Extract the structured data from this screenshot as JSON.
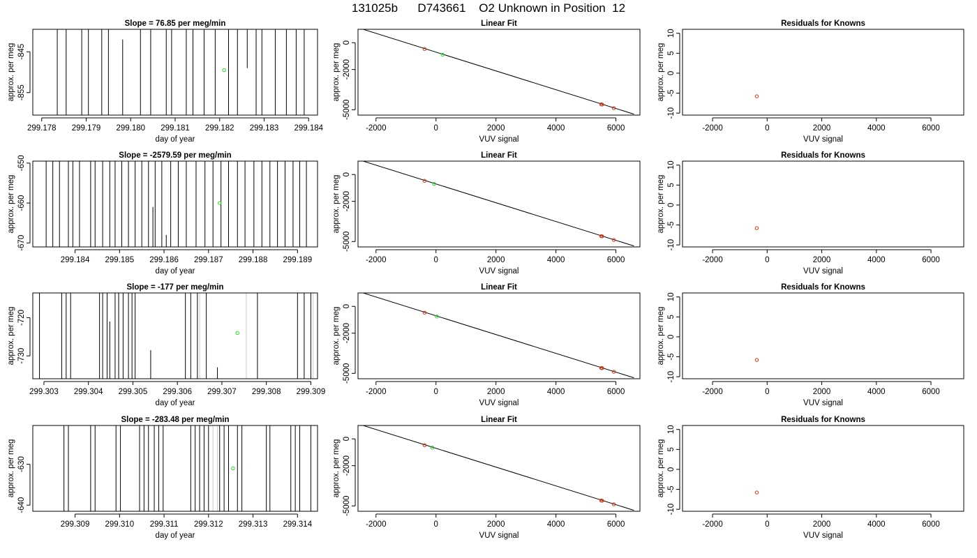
{
  "main_title": "131025b      D743661    O2 Unknown in Position  12",
  "colors": {
    "axis": "#000000",
    "trace": "#000000",
    "trace_faint": "#c8c8c8",
    "known": "#cc3311",
    "unknown": "#22dd22"
  },
  "chart_data": [
    {
      "type": "line",
      "panel": "time-series-1",
      "title": "Slope =  76.85  per meg/min",
      "xlabel": "day of year",
      "ylabel": "approx. per meg",
      "xlim": [
        299.1778,
        299.1842
      ],
      "ylim": [
        -860.5,
        -839.5
      ],
      "x_ticks": [
        299.178,
        299.179,
        299.18,
        299.181,
        299.182,
        299.183,
        299.184
      ],
      "x_tick_labels": [
        "299.178",
        "299.179",
        "299.180",
        "299.181",
        "299.182",
        "299.183",
        "299.184"
      ],
      "y_ticks": [
        -845,
        -855
      ],
      "y_tick_labels": [
        "-845",
        "-855"
      ],
      "spikes": [
        [
          299.17835,
          -860.5,
          -839.5
        ],
        [
          299.17855,
          -860.5,
          -839.5
        ],
        [
          299.1789,
          -860.5,
          -839.5
        ],
        [
          299.17905,
          -860.5,
          -839.5
        ],
        [
          299.17935,
          -860.5,
          -839.5
        ],
        [
          299.1795,
          -860.5,
          -839.5
        ],
        [
          299.17982,
          -860.5,
          -842
        ],
        [
          299.18022,
          -860.5,
          -839.5
        ],
        [
          299.18045,
          -860.5,
          -839.5
        ],
        [
          299.1808,
          -860.5,
          -839.5
        ],
        [
          299.18092,
          -860.5,
          -839.5
        ],
        [
          299.18125,
          -860.5,
          -839.5
        ],
        [
          299.1814,
          -860.5,
          -839.5
        ],
        [
          299.18165,
          -860.5,
          -839.5
        ],
        [
          299.1819,
          -860.5,
          -839.5
        ],
        [
          299.1822,
          -860.5,
          -839.5
        ],
        [
          299.1824,
          -860.5,
          -839.5
        ],
        [
          299.18262,
          -849,
          -839.5
        ],
        [
          299.18282,
          -860.5,
          -839.5
        ],
        [
          299.18295,
          -860.5,
          -839.5
        ],
        [
          299.18325,
          -860.5,
          -839.5
        ],
        [
          299.1835,
          -860.5,
          -839.5
        ],
        [
          299.18372,
          -860.5,
          -839.5
        ],
        [
          299.1839,
          -860.5,
          -839.5
        ]
      ],
      "marker": {
        "x": 299.1821,
        "y": -849.5
      }
    },
    {
      "type": "line",
      "panel": "time-series-2",
      "title": "Slope =  -2579.59  per meg/min",
      "xlabel": "day of year",
      "ylabel": "approx. per meg",
      "xlim": [
        299.18305,
        299.18945
      ],
      "ylim": [
        -671,
        -649.5
      ],
      "x_ticks": [
        299.184,
        299.185,
        299.186,
        299.187,
        299.188,
        299.189
      ],
      "x_tick_labels": [
        "299.184",
        "299.185",
        "299.186",
        "299.187",
        "299.188",
        "299.189"
      ],
      "y_ticks": [
        -650,
        -660,
        -670
      ],
      "y_tick_labels": [
        "-650",
        "-660",
        "-670"
      ],
      "spikes": [
        [
          299.18335,
          -671,
          -649.5
        ],
        [
          299.1835,
          -671,
          -649.5
        ],
        [
          299.18365,
          -671,
          -649.5
        ],
        [
          299.18385,
          -671,
          -649.5
        ],
        [
          299.18395,
          -671,
          -649.5
        ],
        [
          299.1841,
          -671,
          -649.5
        ],
        [
          299.18435,
          -671,
          -649.5
        ],
        [
          299.18445,
          -671,
          -649.5
        ],
        [
          299.18462,
          -671,
          -649.5
        ],
        [
          299.18478,
          -671,
          -649.5
        ],
        [
          299.1849,
          -671,
          -649.5
        ],
        [
          299.18505,
          -671,
          -649.5
        ],
        [
          299.1852,
          -671,
          -649.5
        ],
        [
          299.18535,
          -671,
          -649.5
        ],
        [
          299.1855,
          -671,
          -649.5
        ],
        [
          299.18565,
          -671,
          -649.5
        ],
        [
          299.1858,
          -671,
          -649.5
        ],
        [
          299.18595,
          -671,
          -649.5
        ],
        [
          299.18615,
          -671,
          -649.5
        ],
        [
          299.18632,
          -671,
          -649.5
        ],
        [
          299.1865,
          -671,
          -649.5
        ],
        [
          299.18672,
          -671,
          -649.5
        ],
        [
          299.18692,
          -671,
          -649.5
        ],
        [
          299.1871,
          -671,
          -649.5
        ],
        [
          299.18728,
          -671,
          -649.5
        ],
        [
          299.18745,
          -671,
          -649.5
        ],
        [
          299.18765,
          -671,
          -649.5
        ],
        [
          299.18782,
          -671,
          -649.5
        ],
        [
          299.18802,
          -671,
          -649.5
        ],
        [
          299.1882,
          -671,
          -649.5
        ],
        [
          299.18838,
          -671,
          -649.5
        ],
        [
          299.18855,
          -671,
          -649.5
        ],
        [
          299.18872,
          -671,
          -649.5
        ],
        [
          299.1889,
          -671,
          -649.5
        ],
        [
          299.18905,
          -671,
          -649.5
        ],
        [
          299.1892,
          -671,
          -649.5
        ],
        [
          299.18575,
          -671,
          -661
        ],
        [
          299.18605,
          -671,
          -668
        ]
      ],
      "marker": {
        "x": 299.18725,
        "y": -660
      }
    },
    {
      "type": "line",
      "panel": "time-series-3",
      "title": "Slope =  -177  per meg/min",
      "xlabel": "day of year",
      "ylabel": "approx. per meg",
      "xlim": [
        299.30275,
        299.30915
      ],
      "ylim": [
        -736,
        -713.5
      ],
      "x_ticks": [
        299.303,
        299.304,
        299.305,
        299.306,
        299.307,
        299.308,
        299.309
      ],
      "x_tick_labels": [
        "299.303",
        "299.304",
        "299.305",
        "299.306",
        "299.307",
        "299.308",
        "299.309"
      ],
      "y_ticks": [
        -720,
        -730
      ],
      "y_tick_labels": [
        "-720",
        "-730"
      ],
      "spikes": [
        [
          299.3029,
          -736,
          -713.5
        ],
        [
          299.3034,
          -736,
          -713.5
        ],
        [
          299.3035,
          -736,
          -713.5
        ],
        [
          299.3036,
          -736,
          -713.5
        ],
        [
          299.30425,
          -736,
          -713.5
        ],
        [
          299.30432,
          -736,
          -713.5
        ],
        [
          299.30442,
          -736,
          -713.5
        ],
        [
          299.30448,
          -736,
          -721
        ],
        [
          299.3046,
          -736,
          -713.5
        ],
        [
          299.30468,
          -736,
          -713.5
        ],
        [
          299.30478,
          -736,
          -713.5
        ],
        [
          299.3049,
          -736,
          -713.5
        ],
        [
          299.30498,
          -736,
          -713.5
        ],
        [
          299.30505,
          -736,
          -713.5
        ],
        [
          299.30618,
          -736,
          -713.5
        ],
        [
          299.3063,
          -736,
          -713.5
        ],
        [
          299.30645,
          -736,
          -713.5
        ],
        [
          299.30665,
          -736,
          -713.5
        ],
        [
          299.3078,
          -736,
          -713.5
        ],
        [
          299.3087,
          -736,
          -713.5
        ],
        [
          299.30885,
          -736,
          -713.5
        ],
        [
          299.309,
          -736,
          -713.5
        ],
        [
          299.3054,
          -736,
          -728.5
        ],
        [
          299.3069,
          -736,
          -733
        ]
      ],
      "faint_spikes": [
        [
          299.3065,
          -736,
          -713.5
        ],
        [
          299.30755,
          -736,
          -713.5
        ],
        [
          299.30905,
          -736,
          -713.5
        ]
      ],
      "marker": {
        "x": 299.30735,
        "y": -724
      }
    },
    {
      "type": "line",
      "panel": "time-series-4",
      "title": "Slope =  -283.48  per meg/min",
      "xlabel": "day of year",
      "ylabel": "approx. per meg",
      "xlim": [
        299.30805,
        299.31445
      ],
      "ylim": [
        -641.5,
        -620.5
      ],
      "x_ticks": [
        299.309,
        299.31,
        299.311,
        299.312,
        299.313,
        299.314
      ],
      "x_tick_labels": [
        "299.309",
        "299.310",
        "299.311",
        "299.312",
        "299.313",
        "299.314"
      ],
      "y_ticks": [
        -630,
        -640
      ],
      "y_tick_labels": [
        "-630",
        "-640"
      ],
      "spikes": [
        [
          299.30875,
          -641.5,
          -620.5
        ],
        [
          299.30885,
          -641.5,
          -620.5
        ],
        [
          299.30935,
          -641.5,
          -620.5
        ],
        [
          299.30945,
          -641.5,
          -620.5
        ],
        [
          299.30992,
          -641.5,
          -620.5
        ],
        [
          299.31002,
          -641.5,
          -620.5
        ],
        [
          299.31045,
          -641.5,
          -620.5
        ],
        [
          299.31055,
          -641.5,
          -620.5
        ],
        [
          299.31065,
          -641.5,
          -620.5
        ],
        [
          299.31078,
          -641.5,
          -620.5
        ],
        [
          299.31088,
          -641.5,
          -620.5
        ],
        [
          299.31098,
          -641.5,
          -620.5
        ],
        [
          299.3116,
          -641.5,
          -620.5
        ],
        [
          299.3117,
          -641.5,
          -620.5
        ],
        [
          299.3118,
          -641.5,
          -620.5
        ],
        [
          299.3119,
          -641.5,
          -620.5
        ],
        [
          299.312,
          -641.5,
          -620.5
        ],
        [
          299.31225,
          -641.5,
          -620.5
        ],
        [
          299.31235,
          -641.5,
          -620.5
        ],
        [
          299.31245,
          -641.5,
          -620.5
        ],
        [
          299.31265,
          -641.5,
          -620.5
        ],
        [
          299.31275,
          -641.5,
          -620.5
        ],
        [
          299.3133,
          -641.5,
          -620.5
        ],
        [
          299.31338,
          -641.5,
          -620.5
        ],
        [
          299.31385,
          -641.5,
          -620.5
        ],
        [
          299.31395,
          -641.5,
          -620.5
        ],
        [
          299.31405,
          -641.5,
          -620.5
        ],
        [
          299.3143,
          -641.5,
          -620.5
        ]
      ],
      "faint_spikes": [
        [
          299.3121,
          -641.5,
          -620.5
        ],
        [
          299.3122,
          -641.5,
          -620.5
        ]
      ],
      "marker": {
        "x": 299.31255,
        "y": -631
      }
    },
    {
      "type": "scatter",
      "panel": "linear-fit-1",
      "title": "Linear Fit",
      "xlabel": "VUV signal",
      "ylabel": "approx. per meg",
      "xlim": [
        -2600,
        6800
      ],
      "ylim": [
        -5400,
        1000
      ],
      "x_ticks": [
        -2000,
        0,
        2000,
        4000,
        6000
      ],
      "x_tick_labels": [
        "-2000",
        "0",
        "2000",
        "4000",
        "6000"
      ],
      "y_ticks": [
        0,
        -2000,
        -5000
      ],
      "y_tick_labels": [
        "0",
        "-2000",
        "-5000"
      ],
      "fit_line": [
        [
          -2500,
          1050
        ],
        [
          6600,
          -5330
        ]
      ],
      "knowns": [
        [
          -380,
          -470
        ],
        [
          5510,
          -4600
        ],
        [
          5540,
          -4610
        ],
        [
          5930,
          -4880
        ]
      ],
      "unknown": [
        [
          220,
          -890
        ]
      ]
    },
    {
      "type": "scatter",
      "panel": "linear-fit-2",
      "title": "Linear Fit",
      "xlabel": "VUV signal",
      "ylabel": "approx. per meg",
      "xlim": [
        -2600,
        6800
      ],
      "ylim": [
        -5400,
        1000
      ],
      "x_ticks": [
        -2000,
        0,
        2000,
        4000,
        6000
      ],
      "x_tick_labels": [
        "-2000",
        "0",
        "2000",
        "4000",
        "6000"
      ],
      "y_ticks": [
        0,
        -2000,
        -5000
      ],
      "y_tick_labels": [
        "0",
        "-2000",
        "-5000"
      ],
      "fit_line": [
        [
          -2500,
          1050
        ],
        [
          6600,
          -5330
        ]
      ],
      "knowns": [
        [
          -380,
          -470
        ],
        [
          5510,
          -4600
        ],
        [
          5540,
          -4610
        ],
        [
          5930,
          -4880
        ]
      ],
      "unknown": [
        [
          -60,
          -700
        ]
      ]
    },
    {
      "type": "scatter",
      "panel": "linear-fit-3",
      "title": "Linear Fit",
      "xlabel": "VUV signal",
      "ylabel": "approx. per meg",
      "xlim": [
        -2600,
        6800
      ],
      "ylim": [
        -5400,
        1000
      ],
      "x_ticks": [
        -2000,
        0,
        2000,
        4000,
        6000
      ],
      "x_tick_labels": [
        "-2000",
        "0",
        "2000",
        "4000",
        "6000"
      ],
      "y_ticks": [
        0,
        -2000,
        -5000
      ],
      "y_tick_labels": [
        "0",
        "-2000",
        "-5000"
      ],
      "fit_line": [
        [
          -2500,
          1050
        ],
        [
          6600,
          -5330
        ]
      ],
      "knowns": [
        [
          -380,
          -470
        ],
        [
          5510,
          -4600
        ],
        [
          5540,
          -4610
        ],
        [
          5930,
          -4880
        ]
      ],
      "unknown": [
        [
          30,
          -760
        ]
      ]
    },
    {
      "type": "scatter",
      "panel": "linear-fit-4",
      "title": "Linear Fit",
      "xlabel": "VUV signal",
      "ylabel": "approx. per meg",
      "xlim": [
        -2600,
        6800
      ],
      "ylim": [
        -5400,
        1000
      ],
      "x_ticks": [
        -2000,
        0,
        2000,
        4000,
        6000
      ],
      "x_tick_labels": [
        "-2000",
        "0",
        "2000",
        "4000",
        "6000"
      ],
      "y_ticks": [
        0,
        -2000,
        -5000
      ],
      "y_tick_labels": [
        "0",
        "-2000",
        "-5000"
      ],
      "fit_line": [
        [
          -2500,
          1050
        ],
        [
          6600,
          -5330
        ]
      ],
      "knowns": [
        [
          -380,
          -470
        ],
        [
          5510,
          -4600
        ],
        [
          5540,
          -4610
        ],
        [
          5930,
          -4880
        ]
      ],
      "unknown": [
        [
          -120,
          -650
        ]
      ]
    },
    {
      "type": "scatter",
      "panel": "residuals-1",
      "title": "Residuals for Knowns",
      "xlabel": "VUV signal",
      "ylabel": "approx. per meg",
      "xlim": [
        -3100,
        7200
      ],
      "ylim": [
        -10.5,
        11
      ],
      "x_ticks": [
        -2000,
        0,
        2000,
        4000,
        6000
      ],
      "x_tick_labels": [
        "-2000",
        "0",
        "2000",
        "4000",
        "6000"
      ],
      "y_ticks": [
        10,
        5,
        0,
        -5,
        -10
      ],
      "y_tick_labels": [
        "10",
        "5",
        "0",
        "-5",
        "-10"
      ],
      "knowns": [
        [
          -380,
          -5.8
        ]
      ]
    },
    {
      "type": "scatter",
      "panel": "residuals-2",
      "title": "Residuals for Knowns",
      "xlabel": "VUV signal",
      "ylabel": "approx. per meg",
      "xlim": [
        -3100,
        7200
      ],
      "ylim": [
        -10.5,
        11
      ],
      "x_ticks": [
        -2000,
        0,
        2000,
        4000,
        6000
      ],
      "x_tick_labels": [
        "-2000",
        "0",
        "2000",
        "4000",
        "6000"
      ],
      "y_ticks": [
        10,
        5,
        0,
        -5,
        -10
      ],
      "y_tick_labels": [
        "10",
        "5",
        "0",
        "-5",
        "-10"
      ],
      "knowns": [
        [
          -380,
          -5.8
        ]
      ]
    },
    {
      "type": "scatter",
      "panel": "residuals-3",
      "title": "Residuals for Knowns",
      "xlabel": "VUV signal",
      "ylabel": "approx. per meg",
      "xlim": [
        -3100,
        7200
      ],
      "ylim": [
        -10.5,
        11
      ],
      "x_ticks": [
        -2000,
        0,
        2000,
        4000,
        6000
      ],
      "x_tick_labels": [
        "-2000",
        "0",
        "2000",
        "4000",
        "6000"
      ],
      "y_ticks": [
        10,
        5,
        0,
        -5,
        -10
      ],
      "y_tick_labels": [
        "10",
        "5",
        "0",
        "-5",
        "-10"
      ],
      "knowns": [
        [
          -380,
          -5.8
        ]
      ]
    },
    {
      "type": "scatter",
      "panel": "residuals-4",
      "title": "Residuals for Knowns",
      "xlabel": "VUV signal",
      "ylabel": "approx. per meg",
      "xlim": [
        -3100,
        7200
      ],
      "ylim": [
        -10.5,
        11
      ],
      "x_ticks": [
        -2000,
        0,
        2000,
        4000,
        6000
      ],
      "x_tick_labels": [
        "-2000",
        "0",
        "2000",
        "4000",
        "6000"
      ],
      "y_ticks": [
        10,
        5,
        0,
        -5,
        -10
      ],
      "y_tick_labels": [
        "10",
        "5",
        "0",
        "-5",
        "-10"
      ],
      "knowns": [
        [
          -380,
          -5.8
        ]
      ]
    }
  ]
}
